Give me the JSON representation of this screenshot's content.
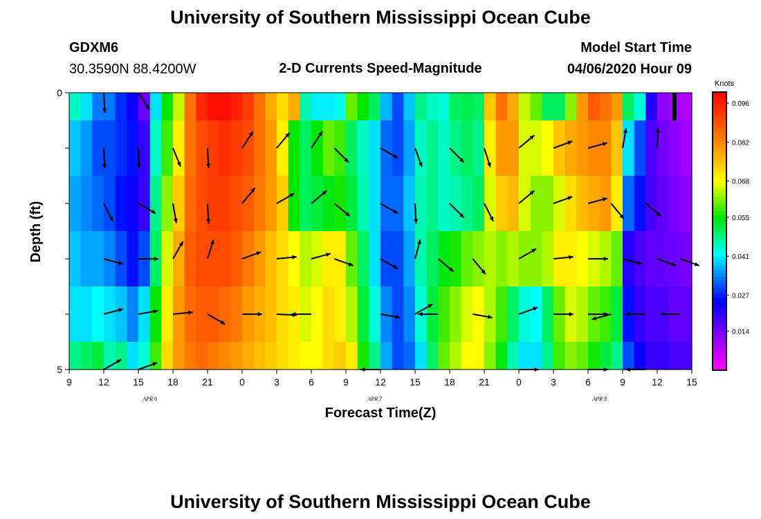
{
  "page": {
    "title_top": "University of Southern Mississippi Ocean Cube",
    "title_bottom": "University of Southern Mississippi Ocean Cube",
    "station_id": "GDXM6",
    "station_coords": "30.3590N 88.4200W",
    "plot_title": "2-D Currents Speed-Magnitude",
    "model_start_label": "Model Start Time",
    "model_start_value": "04/06/2020 Hour 09"
  },
  "chart_data": {
    "type": "heatmap",
    "title": "2-D Currents Speed-Magnitude",
    "xlabel": "Forecast Time(Z)",
    "ylabel": "Depth (ft)",
    "x_ticks": [
      "9",
      "12",
      "15",
      "18",
      "21",
      "0",
      "3",
      "6",
      "9",
      "12",
      "15",
      "18",
      "21",
      "0",
      "3",
      "6",
      "9",
      "12",
      "15"
    ],
    "x_tick_hours": [
      0,
      3,
      6,
      9,
      12,
      15,
      18,
      21,
      24,
      27,
      30,
      33,
      36,
      39,
      42,
      45,
      48,
      51,
      54
    ],
    "x_range_hours": [
      0,
      54
    ],
    "date_labels": [
      {
        "text": "APR 6",
        "hour": 7
      },
      {
        "text": "APR 7",
        "hour": 26.5
      },
      {
        "text": "APR 8",
        "hour": 46
      }
    ],
    "y_ticks": [
      "0",
      "5"
    ],
    "y_range_ft": [
      0,
      5
    ],
    "depth_levels_ft": [
      0,
      1,
      2,
      3,
      4,
      5
    ],
    "colorbar": {
      "units": "Knots",
      "ticks": [
        "0.096",
        "0.082",
        "0.068",
        "0.055",
        "0.041",
        "0.027",
        "0.014"
      ],
      "tick_values": [
        0.096,
        0.082,
        0.068,
        0.055,
        0.041,
        0.027,
        0.014
      ],
      "range": [
        0.0,
        0.1
      ]
    },
    "time_columns": 54,
    "speed_knots": [
      [
        0.045,
        0.04,
        0.033,
        0.033,
        0.028,
        0.024,
        0.015,
        0.04,
        0.055,
        0.065,
        0.085,
        0.095,
        0.098,
        0.098,
        0.096,
        0.092,
        0.085,
        0.078,
        0.072,
        0.078,
        0.046,
        0.041,
        0.041,
        0.043,
        0.06,
        0.055,
        0.05,
        0.037,
        0.03,
        0.038,
        0.048,
        0.045,
        0.044,
        0.05,
        0.051,
        0.05,
        0.075,
        0.085,
        0.078,
        0.065,
        0.06,
        0.05,
        0.05,
        0.062,
        0.08,
        0.088,
        0.085,
        0.08,
        0.05,
        0.044,
        0.022,
        0.012,
        0.01,
        0.008
      ],
      [
        0.038,
        0.035,
        0.03,
        0.03,
        0.028,
        0.026,
        0.02,
        0.045,
        0.058,
        0.07,
        0.085,
        0.09,
        0.092,
        0.094,
        0.092,
        0.09,
        0.085,
        0.08,
        0.07,
        0.055,
        0.05,
        0.055,
        0.06,
        0.058,
        0.05,
        0.045,
        0.04,
        0.032,
        0.03,
        0.036,
        0.045,
        0.048,
        0.045,
        0.048,
        0.05,
        0.048,
        0.07,
        0.08,
        0.08,
        0.066,
        0.066,
        0.068,
        0.075,
        0.078,
        0.08,
        0.082,
        0.082,
        0.075,
        0.04,
        0.03,
        0.018,
        0.014,
        0.012,
        0.01
      ],
      [
        0.036,
        0.034,
        0.032,
        0.03,
        0.026,
        0.024,
        0.02,
        0.048,
        0.062,
        0.074,
        0.086,
        0.09,
        0.092,
        0.092,
        0.09,
        0.088,
        0.084,
        0.08,
        0.074,
        0.055,
        0.05,
        0.052,
        0.054,
        0.056,
        0.052,
        0.046,
        0.04,
        0.032,
        0.032,
        0.038,
        0.046,
        0.048,
        0.045,
        0.046,
        0.048,
        0.05,
        0.066,
        0.074,
        0.076,
        0.066,
        0.062,
        0.062,
        0.066,
        0.072,
        0.076,
        0.078,
        0.08,
        0.07,
        0.032,
        0.026,
        0.018,
        0.016,
        0.014,
        0.012
      ],
      [
        0.038,
        0.036,
        0.036,
        0.034,
        0.03,
        0.026,
        0.03,
        0.05,
        0.066,
        0.078,
        0.088,
        0.09,
        0.09,
        0.09,
        0.088,
        0.084,
        0.08,
        0.076,
        0.072,
        0.068,
        0.064,
        0.066,
        0.07,
        0.07,
        0.06,
        0.05,
        0.04,
        0.03,
        0.03,
        0.036,
        0.046,
        0.05,
        0.054,
        0.056,
        0.06,
        0.062,
        0.064,
        0.062,
        0.064,
        0.062,
        0.062,
        0.064,
        0.07,
        0.07,
        0.068,
        0.066,
        0.064,
        0.06,
        0.022,
        0.018,
        0.016,
        0.016,
        0.015,
        0.014
      ],
      [
        0.04,
        0.04,
        0.042,
        0.04,
        0.038,
        0.034,
        0.04,
        0.055,
        0.07,
        0.08,
        0.086,
        0.088,
        0.088,
        0.086,
        0.084,
        0.08,
        0.078,
        0.076,
        0.072,
        0.07,
        0.066,
        0.068,
        0.072,
        0.07,
        0.064,
        0.052,
        0.044,
        0.034,
        0.03,
        0.034,
        0.044,
        0.052,
        0.058,
        0.062,
        0.066,
        0.068,
        0.064,
        0.058,
        0.05,
        0.044,
        0.042,
        0.05,
        0.06,
        0.066,
        0.064,
        0.06,
        0.058,
        0.052,
        0.026,
        0.02,
        0.018,
        0.018,
        0.016,
        0.016
      ],
      [
        0.048,
        0.05,
        0.052,
        0.046,
        0.048,
        0.04,
        0.044,
        0.058,
        0.072,
        0.08,
        0.084,
        0.086,
        0.084,
        0.082,
        0.08,
        0.078,
        0.076,
        0.074,
        0.072,
        0.07,
        0.068,
        0.068,
        0.072,
        0.074,
        0.07,
        0.056,
        0.048,
        0.036,
        0.03,
        0.032,
        0.04,
        0.05,
        0.06,
        0.064,
        0.068,
        0.068,
        0.062,
        0.054,
        0.046,
        0.04,
        0.04,
        0.048,
        0.058,
        0.062,
        0.06,
        0.056,
        0.052,
        0.048,
        0.03,
        0.024,
        0.02,
        0.02,
        0.018,
        0.018
      ]
    ],
    "vectors": [
      {
        "hour": 3,
        "depth": 0,
        "u": 0.05,
        "v": -1.0
      },
      {
        "hour": 6,
        "depth": 0,
        "u": 0.55,
        "v": -0.84
      },
      {
        "hour": 3,
        "depth": 1,
        "u": 0.05,
        "v": -1.0
      },
      {
        "hour": 6,
        "depth": 1,
        "u": 0.05,
        "v": -1.0
      },
      {
        "hour": 9,
        "depth": 1,
        "u": 0.38,
        "v": -0.92
      },
      {
        "hour": 12,
        "depth": 1,
        "u": 0.05,
        "v": -1.0
      },
      {
        "hour": 15,
        "depth": 1,
        "u": 0.55,
        "v": 0.84
      },
      {
        "hour": 18,
        "depth": 1,
        "u": 0.64,
        "v": 0.77
      },
      {
        "hour": 21,
        "depth": 1,
        "u": 0.55,
        "v": 0.84
      },
      {
        "hour": 23,
        "depth": 1,
        "u": 0.71,
        "v": -0.71
      },
      {
        "hour": 27,
        "depth": 1,
        "u": 0.87,
        "v": -0.5
      },
      {
        "hour": 30,
        "depth": 1,
        "u": 0.34,
        "v": -0.94
      },
      {
        "hour": 33,
        "depth": 1,
        "u": 0.71,
        "v": -0.71
      },
      {
        "hour": 36,
        "depth": 1,
        "u": 0.3,
        "v": -0.95
      },
      {
        "hour": 39,
        "depth": 1,
        "u": 0.77,
        "v": 0.64
      },
      {
        "hour": 42,
        "depth": 1,
        "u": 0.94,
        "v": 0.34
      },
      {
        "hour": 45,
        "depth": 1,
        "u": 0.96,
        "v": 0.26
      },
      {
        "hour": 48,
        "depth": 1,
        "u": 0.17,
        "v": 0.98
      },
      {
        "hour": 51,
        "depth": 1,
        "u": 0.05,
        "v": 1.0
      },
      {
        "hour": 3,
        "depth": 2,
        "u": 0.45,
        "v": -0.89
      },
      {
        "hour": 6,
        "depth": 2,
        "u": 0.87,
        "v": -0.5
      },
      {
        "hour": 9,
        "depth": 2,
        "u": 0.17,
        "v": -0.98
      },
      {
        "hour": 12,
        "depth": 2,
        "u": 0.05,
        "v": -1.0
      },
      {
        "hour": 15,
        "depth": 2,
        "u": 0.64,
        "v": 0.77
      },
      {
        "hour": 18,
        "depth": 2,
        "u": 0.87,
        "v": 0.5
      },
      {
        "hour": 21,
        "depth": 2,
        "u": 0.77,
        "v": 0.64
      },
      {
        "hour": 23,
        "depth": 2,
        "u": 0.77,
        "v": -0.64
      },
      {
        "hour": 27,
        "depth": 2,
        "u": 0.87,
        "v": -0.5
      },
      {
        "hour": 30,
        "depth": 2,
        "u": 0.05,
        "v": -1.0
      },
      {
        "hour": 33,
        "depth": 2,
        "u": 0.71,
        "v": -0.71
      },
      {
        "hour": 36,
        "depth": 2,
        "u": 0.45,
        "v": -0.89
      },
      {
        "hour": 39,
        "depth": 2,
        "u": 0.77,
        "v": 0.64
      },
      {
        "hour": 42,
        "depth": 2,
        "u": 0.94,
        "v": 0.34
      },
      {
        "hour": 45,
        "depth": 2,
        "u": 0.96,
        "v": 0.26
      },
      {
        "hour": 47,
        "depth": 2,
        "u": 0.64,
        "v": -0.77
      },
      {
        "hour": 50,
        "depth": 2,
        "u": 0.77,
        "v": -0.64
      },
      {
        "hour": 3,
        "depth": 3,
        "u": 0.96,
        "v": -0.26
      },
      {
        "hour": 6,
        "depth": 3,
        "u": 1.0,
        "v": 0.0
      },
      {
        "hour": 9,
        "depth": 3,
        "u": 0.5,
        "v": 0.87
      },
      {
        "hour": 12,
        "depth": 3,
        "u": 0.3,
        "v": 0.95
      },
      {
        "hour": 15,
        "depth": 3,
        "u": 0.94,
        "v": 0.34
      },
      {
        "hour": 18,
        "depth": 3,
        "u": 0.99,
        "v": 0.1
      },
      {
        "hour": 21,
        "depth": 3,
        "u": 0.96,
        "v": 0.26
      },
      {
        "hour": 23,
        "depth": 3,
        "u": 0.94,
        "v": -0.34
      },
      {
        "hour": 27,
        "depth": 3,
        "u": 0.87,
        "v": -0.5
      },
      {
        "hour": 30,
        "depth": 3,
        "u": 0.26,
        "v": 0.96
      },
      {
        "hour": 32,
        "depth": 3,
        "u": 0.77,
        "v": -0.64
      },
      {
        "hour": 35,
        "depth": 3,
        "u": 0.64,
        "v": -0.77
      },
      {
        "hour": 39,
        "depth": 3,
        "u": 0.87,
        "v": 0.5
      },
      {
        "hour": 42,
        "depth": 3,
        "u": 0.99,
        "v": 0.1
      },
      {
        "hour": 45,
        "depth": 3,
        "u": 1.0,
        "v": 0.0
      },
      {
        "hour": 48,
        "depth": 3,
        "u": 0.96,
        "v": -0.26
      },
      {
        "hour": 51,
        "depth": 3,
        "u": 0.94,
        "v": -0.34
      },
      {
        "hour": 53,
        "depth": 3,
        "u": 0.94,
        "v": -0.34
      },
      {
        "hour": 3,
        "depth": 4,
        "u": 0.96,
        "v": 0.26
      },
      {
        "hour": 6,
        "depth": 4,
        "u": 0.98,
        "v": 0.17
      },
      {
        "hour": 9,
        "depth": 4,
        "u": 0.99,
        "v": 0.1
      },
      {
        "hour": 12,
        "depth": 4,
        "u": 0.87,
        "v": -0.5
      },
      {
        "hour": 15,
        "depth": 4,
        "u": 1.0,
        "v": 0.0
      },
      {
        "hour": 18,
        "depth": 4,
        "u": 1.0,
        "v": -0.05
      },
      {
        "hour": 21,
        "depth": 4,
        "u": -1.0,
        "v": 0.0
      },
      {
        "hour": 27,
        "depth": 4,
        "u": 0.98,
        "v": -0.17
      },
      {
        "hour": 30,
        "depth": 4,
        "u": 0.87,
        "v": 0.5
      },
      {
        "hour": 32,
        "depth": 4,
        "u": -1.0,
        "v": 0.0
      },
      {
        "hour": 35,
        "depth": 4,
        "u": 0.98,
        "v": -0.17
      },
      {
        "hour": 39,
        "depth": 4,
        "u": 0.94,
        "v": 0.34
      },
      {
        "hour": 42,
        "depth": 4,
        "u": 1.0,
        "v": 0.0
      },
      {
        "hour": 45,
        "depth": 4,
        "u": 1.0,
        "v": 0.0
      },
      {
        "hour": 47,
        "depth": 4,
        "u": -0.96,
        "v": -0.26
      },
      {
        "hour": 50,
        "depth": 4,
        "u": -1.0,
        "v": 0.0
      },
      {
        "hour": 53,
        "depth": 4,
        "u": -1.0,
        "v": 0.0
      },
      {
        "hour": 3,
        "depth": 5,
        "u": 0.87,
        "v": 0.5
      },
      {
        "hour": 6,
        "depth": 5,
        "u": 0.94,
        "v": 0.34
      },
      {
        "hour": 27,
        "depth": 5,
        "u": -1.0,
        "v": 0.0
      },
      {
        "hour": 39,
        "depth": 5,
        "u": 1.0,
        "v": 0.0
      },
      {
        "hour": 45,
        "depth": 5,
        "u": 1.0,
        "v": 0.0
      },
      {
        "hour": 50,
        "depth": 5,
        "u": -1.0,
        "v": 0.0
      }
    ],
    "scale_marker": {
      "hour": 52.5,
      "depth_from": 0,
      "depth_to": 0.5
    }
  }
}
